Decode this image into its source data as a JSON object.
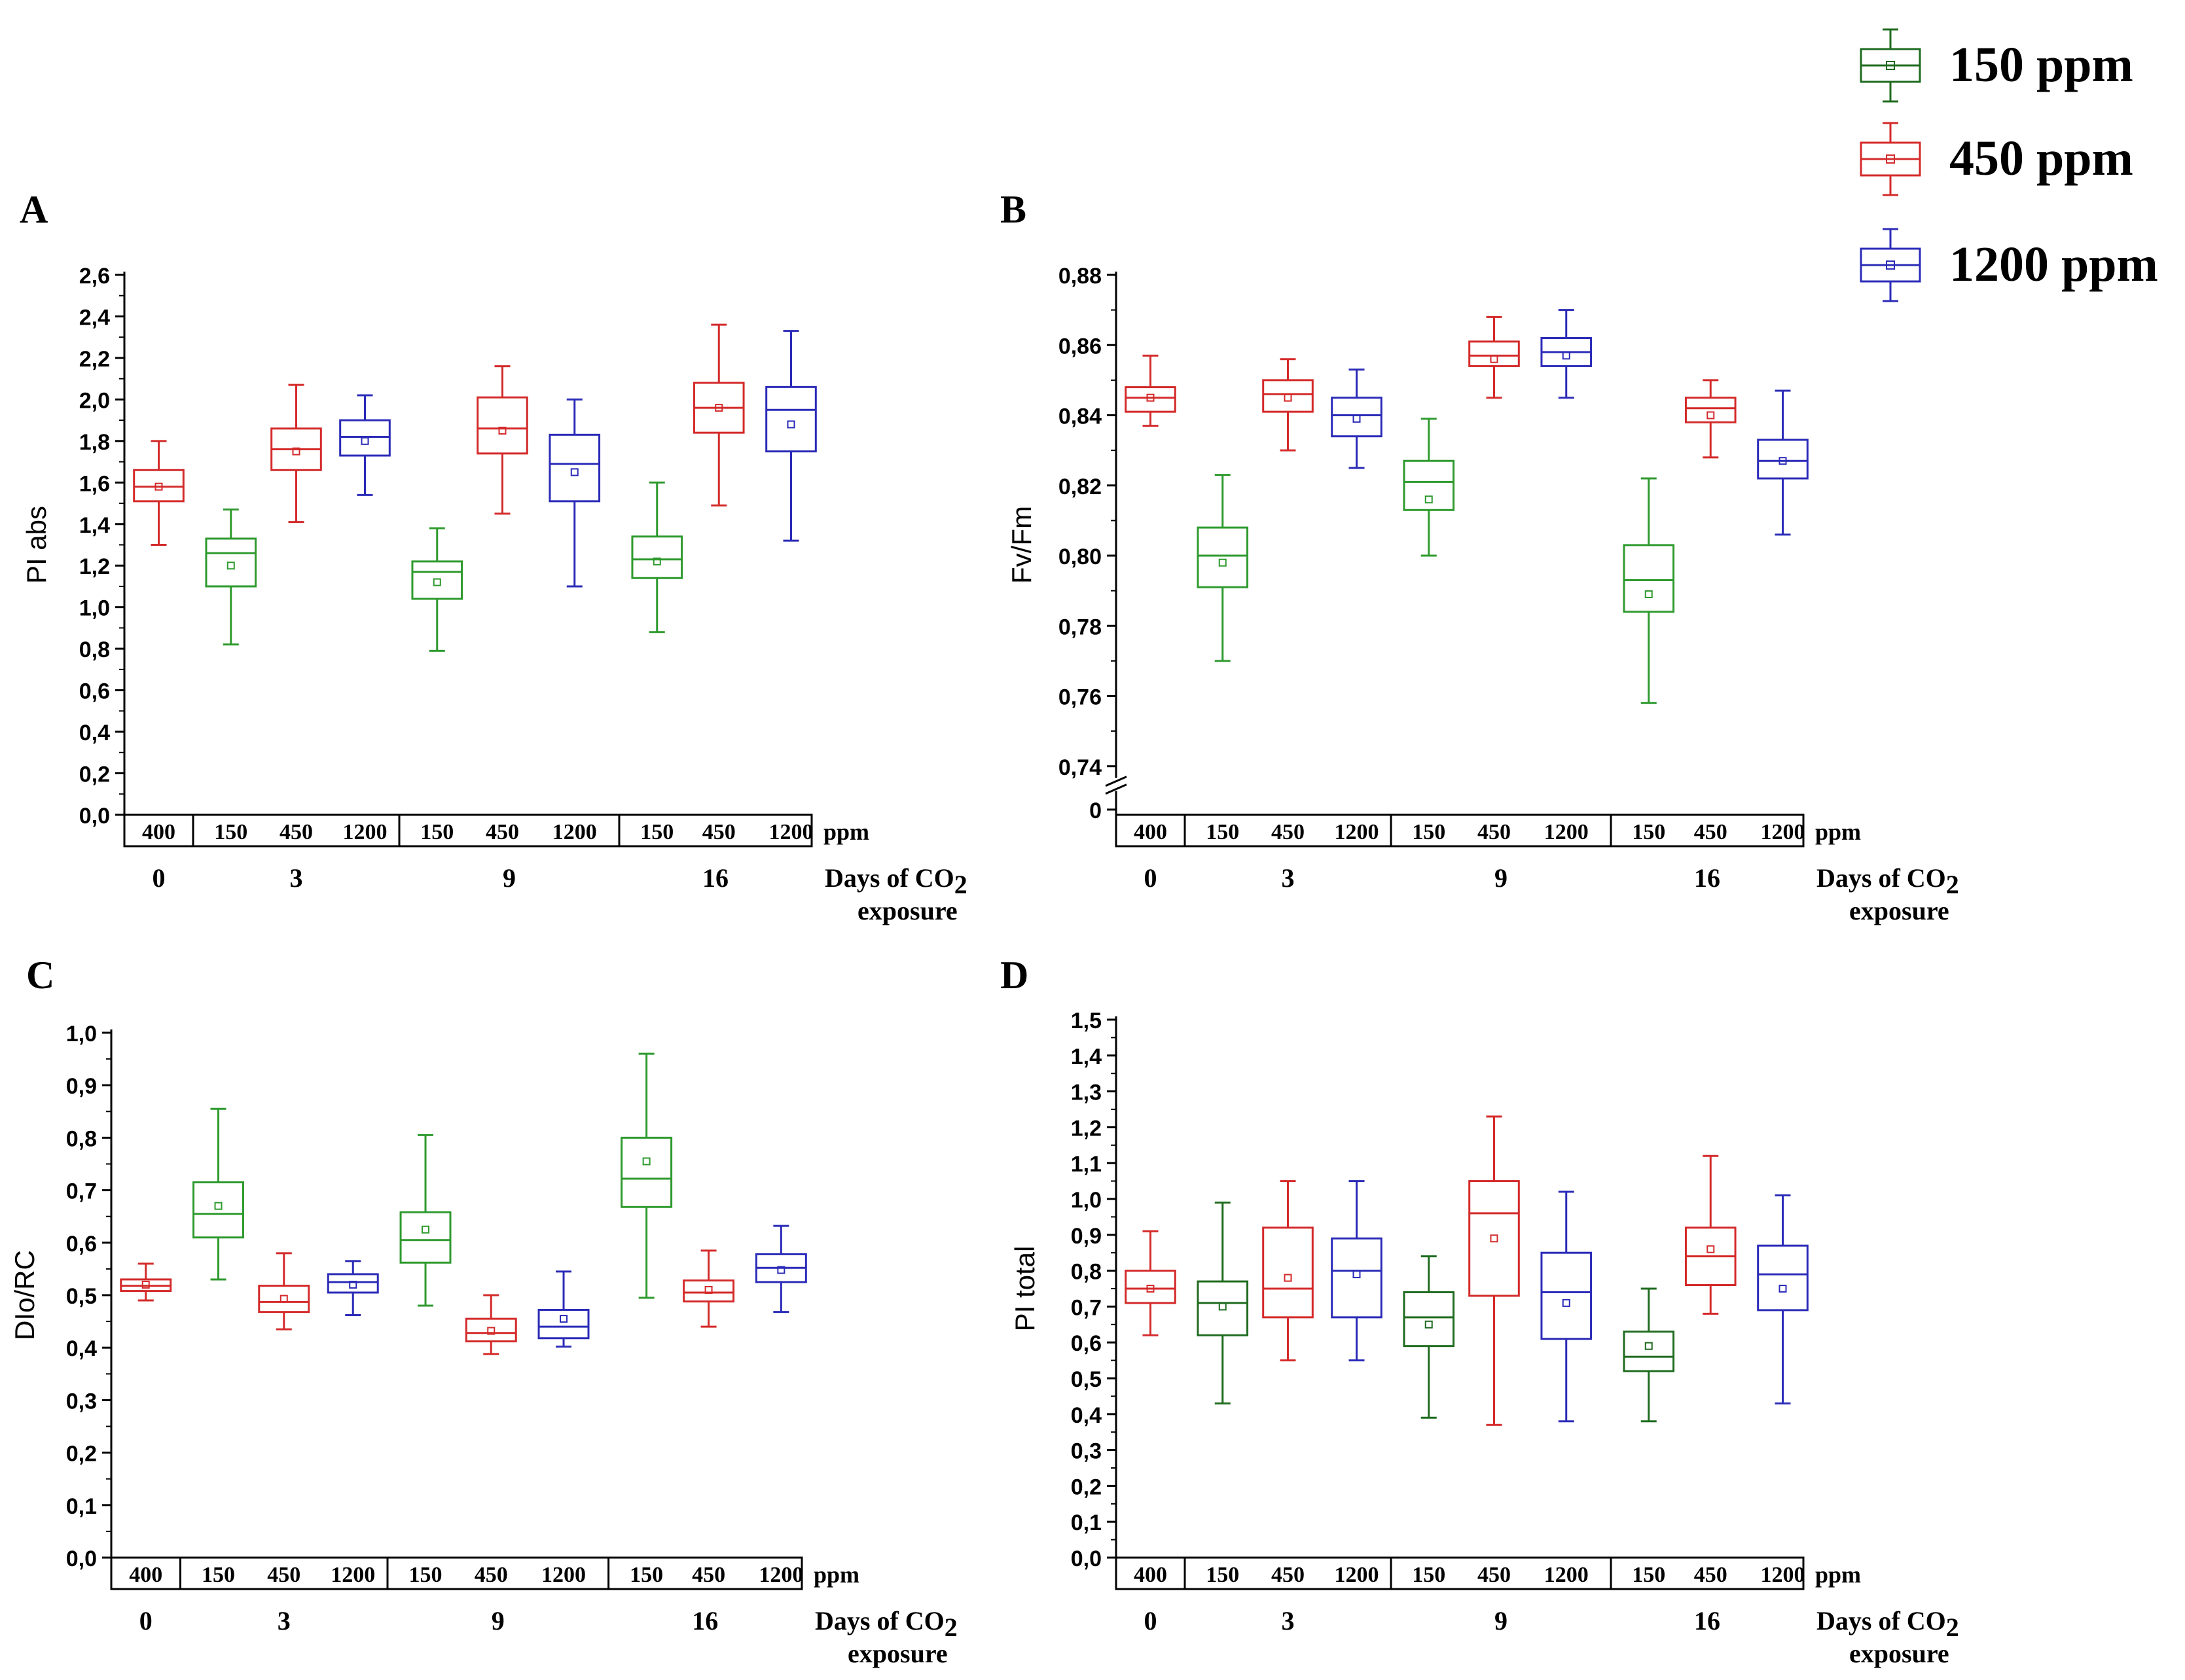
{
  "legend": {
    "placement": "top-right",
    "items": [
      {
        "label": "150 ppm",
        "color": "#1f6b1f"
      },
      {
        "label": "450 ppm",
        "color": "#d42a2a"
      },
      {
        "label": "1200 ppm",
        "color": "#2b2bb8"
      }
    ]
  },
  "chart_data": [
    {
      "type": "box",
      "panel_label": "A",
      "ylabel": "PI abs",
      "ylim": [
        0,
        2.6
      ],
      "yticks": [
        "0,0",
        "0,2",
        "0,4",
        "0,6",
        "0,8",
        "1,0",
        "1,2",
        "1,4",
        "1,6",
        "1,8",
        "2,0",
        "2,2",
        "2,4",
        "2,6"
      ],
      "ppm_unit": "ppm",
      "days_label": "Days of CO2 exposure",
      "groups": [
        {
          "day": "0",
          "boxes": [
            {
              "ppm": "400",
              "series": "450 ppm",
              "color": "#d42a2a",
              "min": 1.3,
              "q1": 1.51,
              "median": 1.58,
              "q3": 1.66,
              "max": 1.8,
              "mean": 1.58
            }
          ]
        },
        {
          "day": "3",
          "boxes": [
            {
              "ppm": "150",
              "series": "150 ppm",
              "color": "#2e9a2e",
              "min": 0.82,
              "q1": 1.1,
              "median": 1.26,
              "q3": 1.33,
              "max": 1.47,
              "mean": 1.2
            },
            {
              "ppm": "450",
              "series": "450 ppm",
              "color": "#d42a2a",
              "min": 1.41,
              "q1": 1.66,
              "median": 1.76,
              "q3": 1.86,
              "max": 2.07,
              "mean": 1.75
            },
            {
              "ppm": "1200",
              "series": "1200 ppm",
              "color": "#2b2bb8",
              "min": 1.54,
              "q1": 1.73,
              "median": 1.82,
              "q3": 1.9,
              "max": 2.02,
              "mean": 1.8
            }
          ]
        },
        {
          "day": "9",
          "boxes": [
            {
              "ppm": "150",
              "series": "150 ppm",
              "color": "#2e9a2e",
              "min": 0.79,
              "q1": 1.04,
              "median": 1.17,
              "q3": 1.22,
              "max": 1.38,
              "mean": 1.12
            },
            {
              "ppm": "450",
              "series": "450 ppm",
              "color": "#d42a2a",
              "min": 1.45,
              "q1": 1.74,
              "median": 1.86,
              "q3": 2.01,
              "max": 2.16,
              "mean": 1.85
            },
            {
              "ppm": "1200",
              "series": "1200 ppm",
              "color": "#2b2bb8",
              "min": 1.1,
              "q1": 1.51,
              "median": 1.69,
              "q3": 1.83,
              "max": 2.0,
              "mean": 1.65
            }
          ]
        },
        {
          "day": "16",
          "boxes": [
            {
              "ppm": "150",
              "series": "150 ppm",
              "color": "#2e9a2e",
              "min": 0.88,
              "q1": 1.14,
              "median": 1.23,
              "q3": 1.34,
              "max": 1.6,
              "mean": 1.22
            },
            {
              "ppm": "450",
              "series": "450 ppm",
              "color": "#d42a2a",
              "min": 1.49,
              "q1": 1.84,
              "median": 1.96,
              "q3": 2.08,
              "max": 2.36,
              "mean": 1.96
            },
            {
              "ppm": "1200",
              "series": "1200 ppm",
              "color": "#2b2bb8",
              "min": 1.32,
              "q1": 1.75,
              "median": 1.95,
              "q3": 2.06,
              "max": 2.33,
              "mean": 1.88
            }
          ]
        }
      ]
    },
    {
      "type": "box",
      "panel_label": "B",
      "ylabel": "Fv/Fm",
      "ylim": [
        0.74,
        0.88
      ],
      "axis_break": true,
      "yticks": [
        "0,74",
        "0,76",
        "0,78",
        "0,80",
        "0,82",
        "0,84",
        "0,86",
        "0,88"
      ],
      "ytick_zero": "0",
      "ppm_unit": "ppm",
      "days_label": "Days of CO2 exposure",
      "groups": [
        {
          "day": "0",
          "boxes": [
            {
              "ppm": "400",
              "series": "450 ppm",
              "color": "#d42a2a",
              "min": 0.837,
              "q1": 0.841,
              "median": 0.845,
              "q3": 0.848,
              "max": 0.857,
              "mean": 0.845
            }
          ]
        },
        {
          "day": "3",
          "boxes": [
            {
              "ppm": "150",
              "series": "150 ppm",
              "color": "#2e9a2e",
              "min": 0.77,
              "q1": 0.791,
              "median": 0.8,
              "q3": 0.808,
              "max": 0.823,
              "mean": 0.798
            },
            {
              "ppm": "450",
              "series": "450 ppm",
              "color": "#d42a2a",
              "min": 0.83,
              "q1": 0.841,
              "median": 0.846,
              "q3": 0.85,
              "max": 0.856,
              "mean": 0.845
            },
            {
              "ppm": "1200",
              "series": "1200 ppm",
              "color": "#2b2bb8",
              "min": 0.825,
              "q1": 0.834,
              "median": 0.84,
              "q3": 0.845,
              "max": 0.853,
              "mean": 0.839
            }
          ]
        },
        {
          "day": "9",
          "boxes": [
            {
              "ppm": "150",
              "series": "150 ppm",
              "color": "#2e9a2e",
              "min": 0.8,
              "q1": 0.813,
              "median": 0.821,
              "q3": 0.827,
              "max": 0.839,
              "mean": 0.816
            }
          ]
        },
        {
          "day": "9b",
          "hidden_day": true,
          "boxes": [
            {
              "ppm": "450",
              "series": "450 ppm",
              "color": "#d42a2a",
              "min": 0.845,
              "q1": 0.854,
              "median": 0.857,
              "q3": 0.861,
              "max": 0.868,
              "mean": 0.856
            },
            {
              "ppm": "1200",
              "series": "1200 ppm",
              "color": "#2b2bb8",
              "min": 0.845,
              "q1": 0.854,
              "median": 0.858,
              "q3": 0.862,
              "max": 0.87,
              "mean": 0.857
            }
          ]
        },
        {
          "day": "16",
          "boxes": [
            {
              "ppm": "150",
              "series": "150 ppm",
              "color": "#2e9a2e",
              "min": 0.758,
              "q1": 0.784,
              "median": 0.793,
              "q3": 0.803,
              "max": 0.822,
              "mean": 0.789
            },
            {
              "ppm": "450",
              "series": "450 ppm",
              "color": "#d42a2a",
              "min": 0.828,
              "q1": 0.838,
              "median": 0.842,
              "q3": 0.845,
              "max": 0.85,
              "mean": 0.84
            },
            {
              "ppm": "1200",
              "series": "1200 ppm",
              "color": "#2b2bb8",
              "min": 0.806,
              "q1": 0.822,
              "median": 0.827,
              "q3": 0.833,
              "max": 0.847,
              "mean": 0.827
            }
          ]
        }
      ]
    },
    {
      "type": "box",
      "panel_label": "C",
      "ylabel": "DIo/RC",
      "ylim": [
        0,
        1.0
      ],
      "yticks": [
        "0,0",
        "0,1",
        "0,2",
        "0,3",
        "0,4",
        "0,5",
        "0,6",
        "0,7",
        "0,8",
        "0,9",
        "1,0"
      ],
      "ppm_unit": "ppm",
      "days_label": "Days of CO2 exposure",
      "groups": [
        {
          "day": "0",
          "boxes": [
            {
              "ppm": "400",
              "series": "450 ppm",
              "color": "#d42a2a",
              "min": 0.49,
              "q1": 0.508,
              "median": 0.518,
              "q3": 0.53,
              "max": 0.56,
              "mean": 0.52
            }
          ]
        },
        {
          "day": "3",
          "boxes": [
            {
              "ppm": "150",
              "series": "150 ppm",
              "color": "#2e9a2e",
              "min": 0.53,
              "q1": 0.61,
              "median": 0.655,
              "q3": 0.715,
              "max": 0.855,
              "mean": 0.67
            },
            {
              "ppm": "450",
              "series": "450 ppm",
              "color": "#d42a2a",
              "min": 0.435,
              "q1": 0.468,
              "median": 0.487,
              "q3": 0.518,
              "max": 0.58,
              "mean": 0.493
            },
            {
              "ppm": "1200",
              "series": "1200 ppm",
              "color": "#2b2bb8",
              "min": 0.462,
              "q1": 0.505,
              "median": 0.525,
              "q3": 0.54,
              "max": 0.565,
              "mean": 0.52
            }
          ]
        },
        {
          "day": "9",
          "boxes": [
            {
              "ppm": "150",
              "series": "150 ppm",
              "color": "#2e9a2e",
              "min": 0.48,
              "q1": 0.562,
              "median": 0.605,
              "q3": 0.658,
              "max": 0.805,
              "mean": 0.625
            },
            {
              "ppm": "450",
              "series": "450 ppm",
              "color": "#d42a2a",
              "min": 0.388,
              "q1": 0.412,
              "median": 0.428,
              "q3": 0.455,
              "max": 0.5,
              "mean": 0.432
            },
            {
              "ppm": "1200",
              "series": "1200 ppm",
              "color": "#2b2bb8",
              "min": 0.402,
              "q1": 0.418,
              "median": 0.44,
              "q3": 0.472,
              "max": 0.545,
              "mean": 0.455
            }
          ]
        },
        {
          "day": "16",
          "boxes": [
            {
              "ppm": "150",
              "series": "150 ppm",
              "color": "#2e9a2e",
              "min": 0.495,
              "q1": 0.668,
              "median": 0.722,
              "q3": 0.8,
              "max": 0.96,
              "mean": 0.755
            },
            {
              "ppm": "450",
              "series": "450 ppm",
              "color": "#d42a2a",
              "min": 0.44,
              "q1": 0.488,
              "median": 0.505,
              "q3": 0.528,
              "max": 0.585,
              "mean": 0.51
            },
            {
              "ppm": "1200",
              "series": "1200 ppm",
              "color": "#2b2bb8",
              "min": 0.468,
              "q1": 0.525,
              "median": 0.552,
              "q3": 0.578,
              "max": 0.632,
              "mean": 0.548
            }
          ]
        }
      ]
    },
    {
      "type": "box",
      "panel_label": "D",
      "ylabel": "PI total",
      "ylim": [
        0,
        1.5
      ],
      "yticks": [
        "0,0",
        "0,1",
        "0,2",
        "0,3",
        "0,4",
        "0,5",
        "0,6",
        "0,7",
        "0,8",
        "0,9",
        "1,0",
        "1,1",
        "1,2",
        "1,3",
        "1,4",
        "1,5"
      ],
      "ppm_unit": "ppm",
      "days_label": "Days of CO2 exposure",
      "groups": [
        {
          "day": "0",
          "boxes": [
            {
              "ppm": "400",
              "series": "450 ppm",
              "color": "#d42a2a",
              "min": 0.62,
              "q1": 0.71,
              "median": 0.75,
              "q3": 0.8,
              "max": 0.91,
              "mean": 0.75
            }
          ]
        },
        {
          "day": "3",
          "boxes": [
            {
              "ppm": "150",
              "series": "150 ppm",
              "color": "#1f6b1f",
              "min": 0.43,
              "q1": 0.62,
              "median": 0.71,
              "q3": 0.77,
              "max": 0.99,
              "mean": 0.7
            },
            {
              "ppm": "450",
              "series": "450 ppm",
              "color": "#d42a2a",
              "min": 0.55,
              "q1": 0.67,
              "median": 0.75,
              "q3": 0.92,
              "max": 1.05,
              "mean": 0.78
            },
            {
              "ppm": "1200",
              "series": "1200 ppm",
              "color": "#2b2bb8",
              "min": 0.55,
              "q1": 0.67,
              "median": 0.8,
              "q3": 0.89,
              "max": 1.05,
              "mean": 0.79
            }
          ]
        },
        {
          "day": "9",
          "boxes": [
            {
              "ppm": "150",
              "series": "150 ppm",
              "color": "#1f6b1f",
              "min": 0.39,
              "q1": 0.59,
              "median": 0.67,
              "q3": 0.74,
              "max": 0.84,
              "mean": 0.65
            },
            {
              "ppm": "450",
              "series": "450 ppm",
              "color": "#d42a2a",
              "min": 0.37,
              "q1": 0.73,
              "median": 0.96,
              "q3": 1.05,
              "max": 1.23,
              "mean": 0.89
            },
            {
              "ppm": "1200",
              "series": "1200 ppm",
              "color": "#2b2bb8",
              "min": 0.38,
              "q1": 0.61,
              "median": 0.74,
              "q3": 0.85,
              "max": 1.02,
              "mean": 0.71
            }
          ]
        },
        {
          "day": "16",
          "boxes": [
            {
              "ppm": "150",
              "series": "150 ppm",
              "color": "#1f6b1f",
              "min": 0.38,
              "q1": 0.52,
              "median": 0.56,
              "q3": 0.63,
              "max": 0.75,
              "mean": 0.59
            },
            {
              "ppm": "450",
              "series": "450 ppm",
              "color": "#d42a2a",
              "min": 0.68,
              "q1": 0.76,
              "median": 0.84,
              "q3": 0.92,
              "max": 1.12,
              "mean": 0.86
            },
            {
              "ppm": "1200",
              "series": "1200 ppm",
              "color": "#2b2bb8",
              "min": 0.43,
              "q1": 0.69,
              "median": 0.79,
              "q3": 0.87,
              "max": 1.01,
              "mean": 0.75
            }
          ]
        }
      ]
    }
  ]
}
